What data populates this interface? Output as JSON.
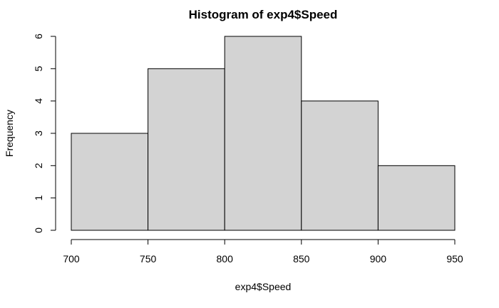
{
  "chart_data": {
    "type": "bar",
    "title": "Histogram of exp4$Speed",
    "xlabel": "exp4$Speed",
    "ylabel": "Frequency",
    "bins": [
      {
        "from": 700,
        "to": 750,
        "count": 3
      },
      {
        "from": 750,
        "to": 800,
        "count": 5
      },
      {
        "from": 800,
        "to": 850,
        "count": 6
      },
      {
        "from": 850,
        "to": 900,
        "count": 4
      },
      {
        "from": 900,
        "to": 950,
        "count": 2
      }
    ],
    "xlim": [
      700,
      950
    ],
    "ylim": [
      0,
      6
    ],
    "xticks": [
      700,
      750,
      800,
      850,
      900,
      950
    ],
    "yticks": [
      0,
      1,
      2,
      3,
      4,
      5,
      6
    ],
    "bar_fill": "#d3d3d3",
    "bar_stroke": "#000000",
    "grid": false
  }
}
